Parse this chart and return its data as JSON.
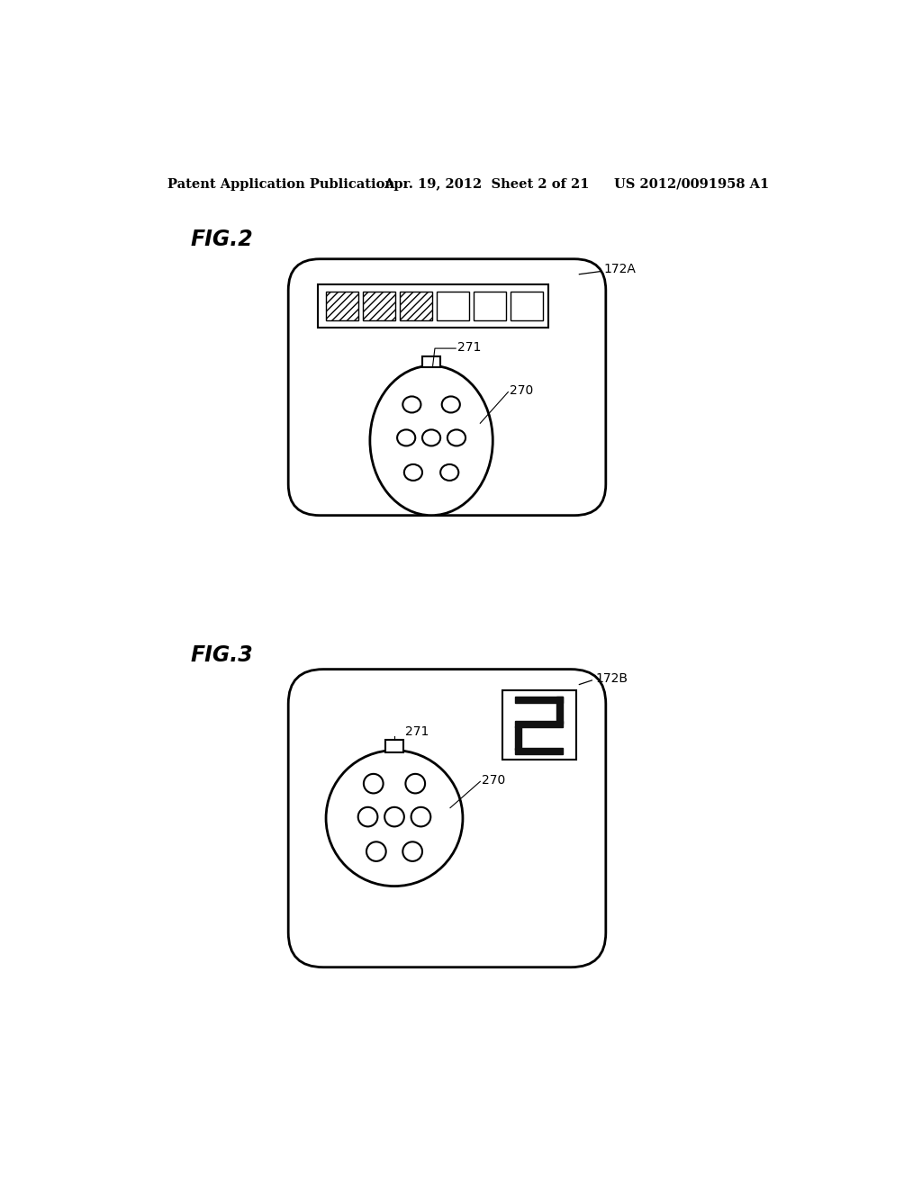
{
  "bg_color": "#ffffff",
  "header_left": "Patent Application Publication",
  "header_mid": "Apr. 19, 2012  Sheet 2 of 21",
  "header_right": "US 2012/0091958 A1",
  "fig2_label": "FIG.2",
  "fig3_label": "FIG.3",
  "fig2_ref": "172A",
  "fig3_ref": "172B",
  "label_271": "271",
  "label_270": "270",
  "line_color": "#000000"
}
